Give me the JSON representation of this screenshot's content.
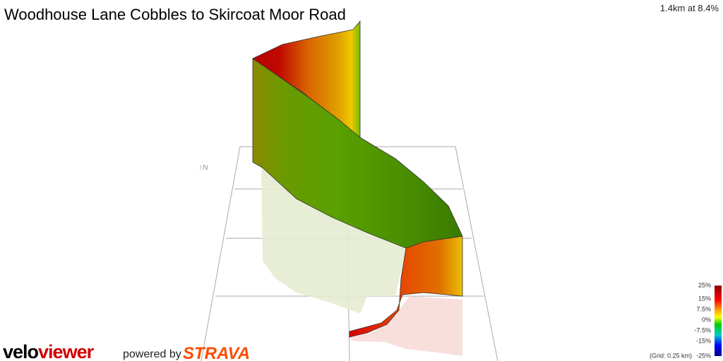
{
  "header": {
    "title": "Woodhouse Lane Cobbles to Skircoat Moor Road",
    "stat": "1.4km at 8.4%"
  },
  "compass": "↑N",
  "legend": {
    "labels": [
      "25%",
      "15%",
      "7.5%",
      "0%",
      "-7.5%",
      "-15%",
      "-25%"
    ],
    "grid_note": "(Grid: 0.25 km)"
  },
  "branding": {
    "logo_a": "velo",
    "logo_b": "viewer",
    "powered_by": "powered by",
    "strava": "STRAVA"
  }
}
